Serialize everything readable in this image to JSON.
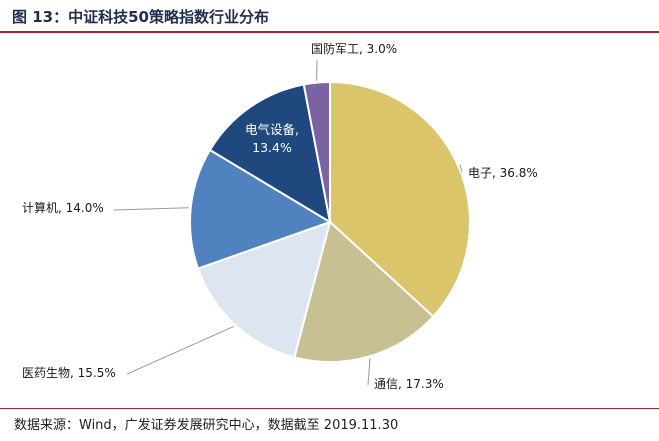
{
  "title": "图 13：中证科技50策略指数行业分布",
  "source": "数据来源：Wind，广发证券发展研究中心，数据截至 2019.11.30",
  "colors": {
    "rule": "#a32a2a",
    "title": "#1f2d4f",
    "leader": "#999999"
  },
  "chart_data": {
    "type": "pie",
    "title": "",
    "slices": [
      {
        "label": "电子, 36.8%",
        "name": "电子",
        "value": 36.8,
        "color": "#dac56b"
      },
      {
        "label": "通信, 17.3%",
        "name": "通信",
        "value": 17.3,
        "color": "#c8c093"
      },
      {
        "label": "医药生物, 15.5%",
        "name": "医药生物",
        "value": 15.5,
        "color": "#dde5f0"
      },
      {
        "label": "计算机, 14.0%",
        "name": "计算机",
        "value": 14.0,
        "color": "#4f82bf"
      },
      {
        "label_name": "电气设备,",
        "label_value": "13.4%",
        "name": "电气设备",
        "value": 13.4,
        "color": "#1f497e"
      },
      {
        "label": "国防军工, 3.0%",
        "name": "国防军工",
        "value": 3.0,
        "color": "#7b62a0"
      }
    ]
  }
}
